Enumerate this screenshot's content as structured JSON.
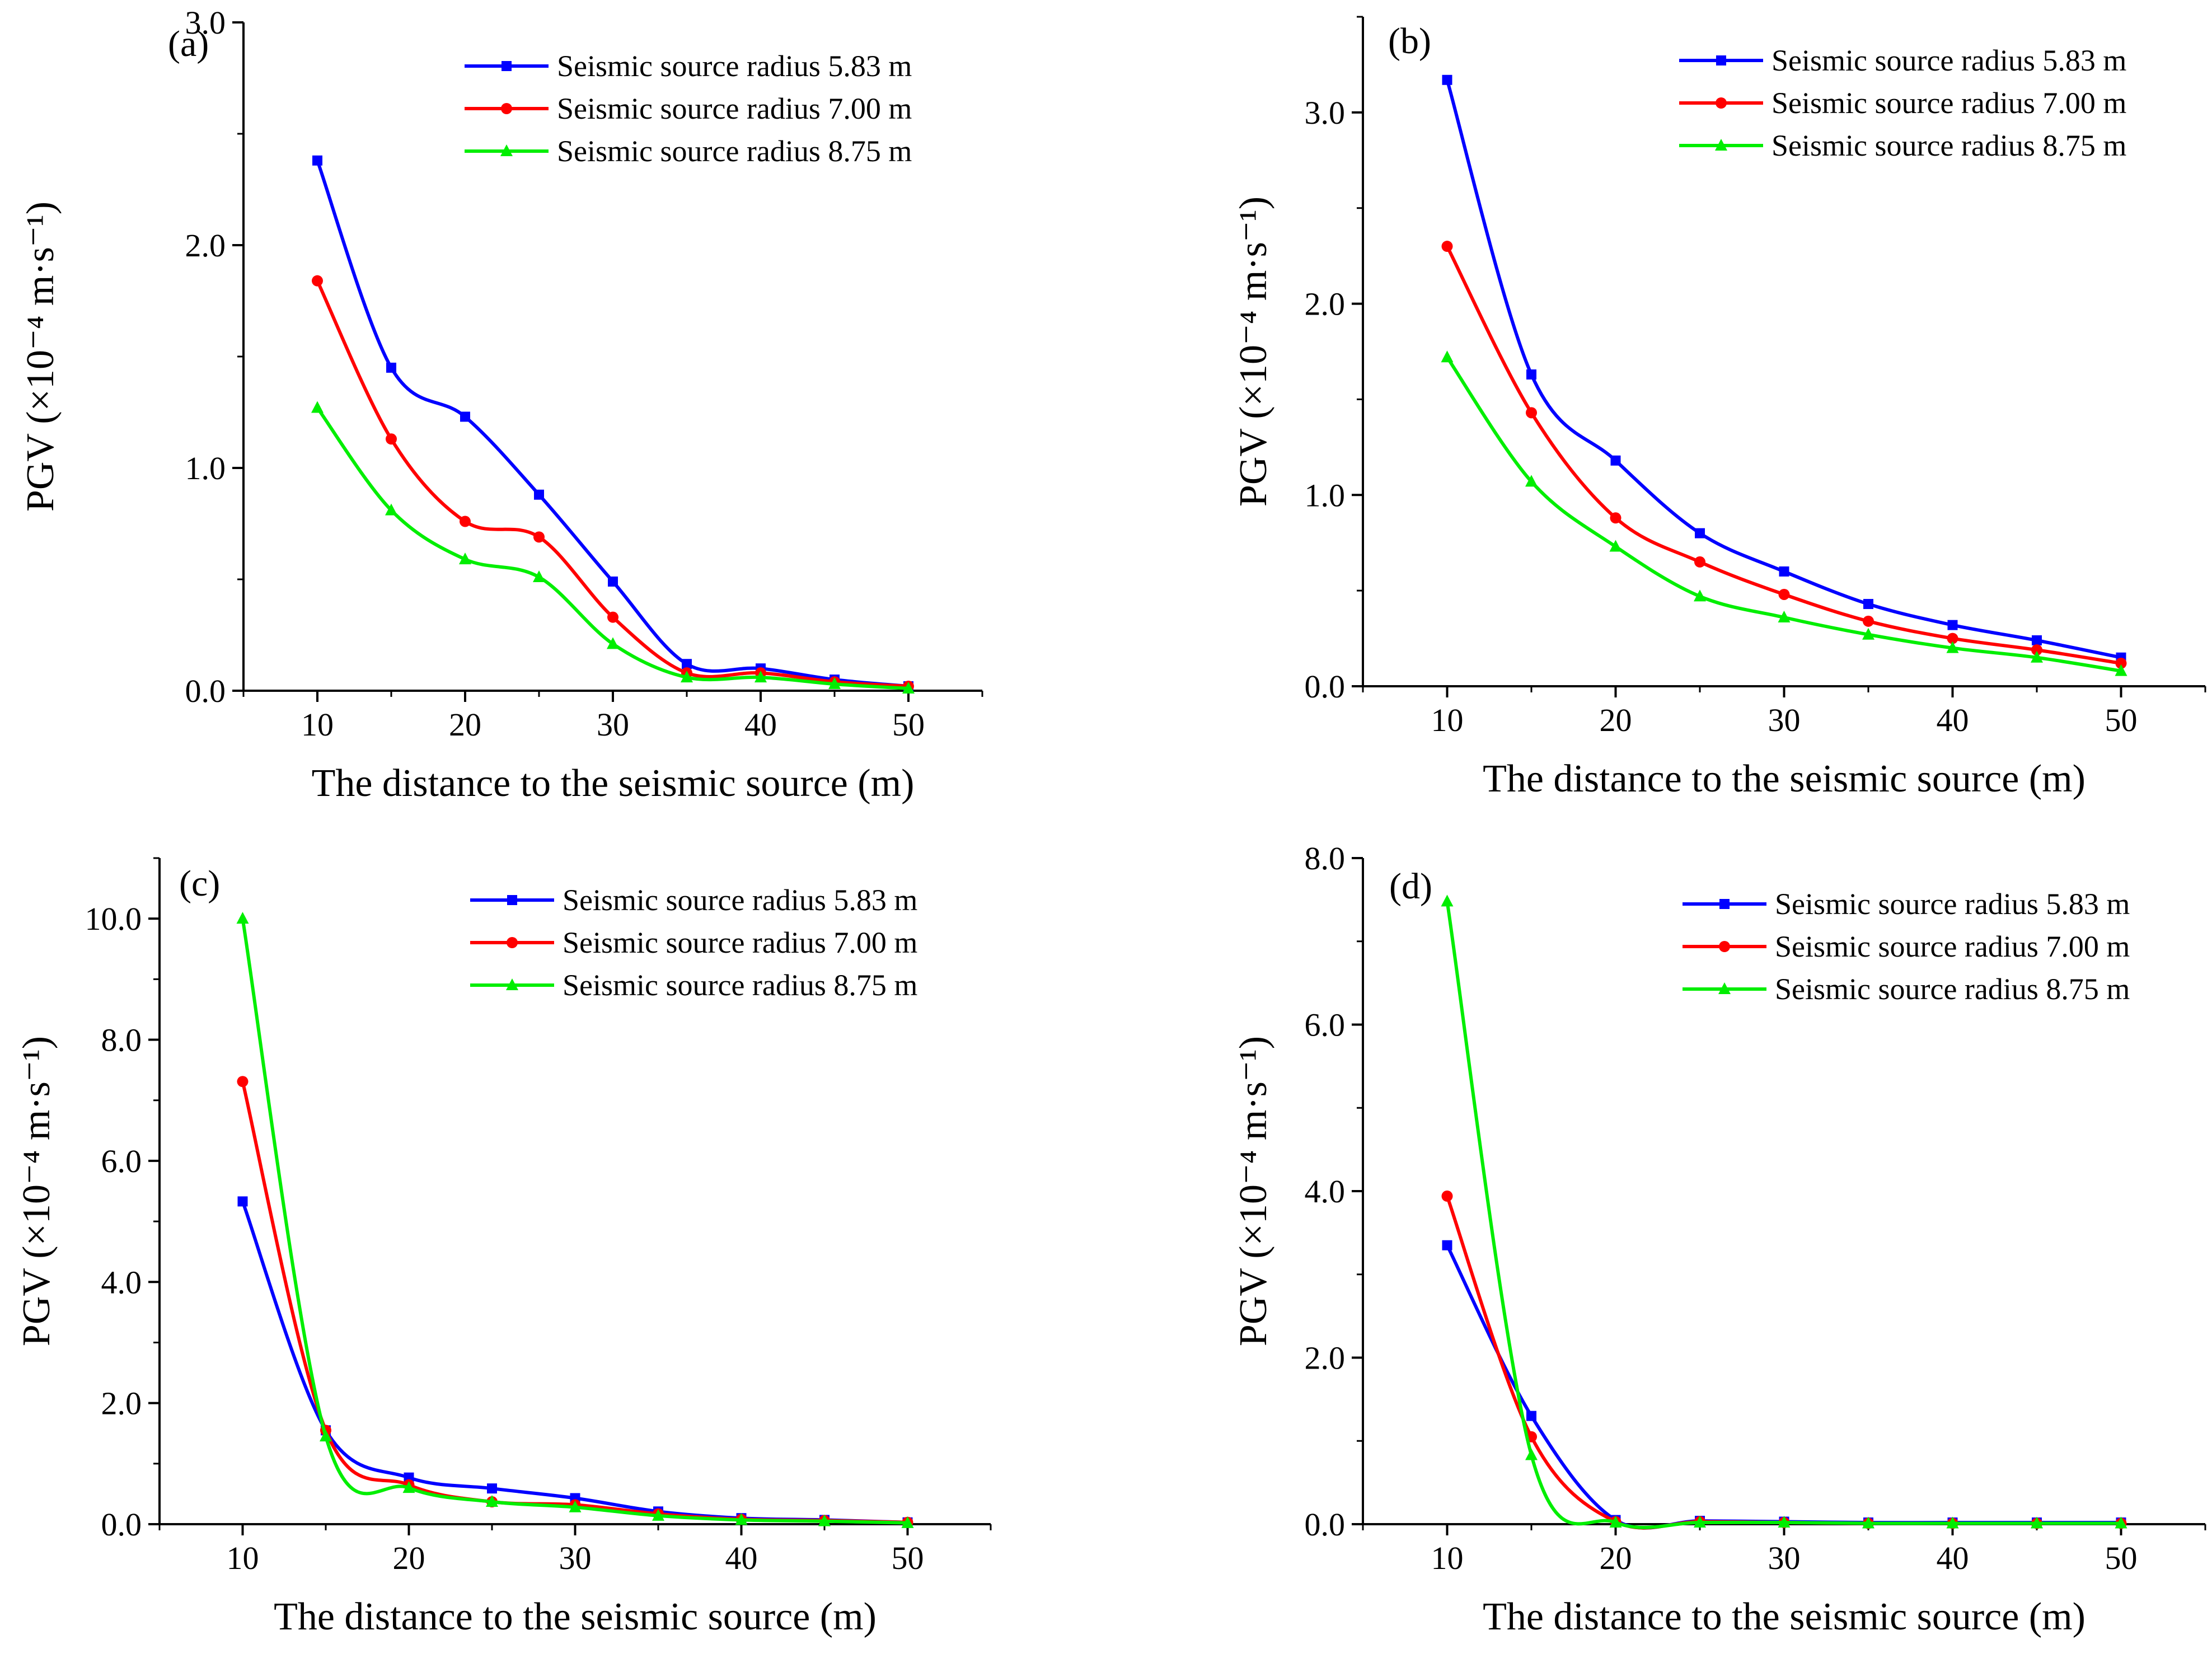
{
  "colors": {
    "series_blue": "#0000ff",
    "series_red": "#ff0000",
    "series_green": "#00ee00",
    "axis": "#000000"
  },
  "chart_data": [
    {
      "type": "line",
      "panel": "(a)",
      "xlabel": "The distance to the seismic source (m)",
      "ylabel": "PGV (×10⁻⁴ m·s⁻¹)",
      "xlim": [
        5,
        55
      ],
      "ylim": [
        0,
        3.0
      ],
      "xticks": [
        10,
        20,
        30,
        40,
        50
      ],
      "yticks": [
        "0.0",
        "1.0",
        "2.0",
        "3.0"
      ],
      "x": [
        10,
        15,
        20,
        25,
        30,
        35,
        40,
        45,
        50
      ],
      "series": [
        {
          "name": "Seismic source radius 5.83 m",
          "color": "#0000ff",
          "marker": "square",
          "values": [
            2.38,
            1.45,
            1.23,
            0.88,
            0.49,
            0.12,
            0.1,
            0.05,
            0.02
          ]
        },
        {
          "name": "Seismic source radius 7.00 m",
          "color": "#ff0000",
          "marker": "circle",
          "values": [
            1.84,
            1.13,
            0.76,
            0.69,
            0.33,
            0.08,
            0.08,
            0.04,
            0.02
          ]
        },
        {
          "name": "Seismic source radius 8.75 m",
          "color": "#00ee00",
          "marker": "triangle",
          "values": [
            1.27,
            0.81,
            0.59,
            0.51,
            0.21,
            0.06,
            0.06,
            0.03,
            0.01
          ]
        }
      ]
    },
    {
      "type": "line",
      "panel": "(b)",
      "xlabel": "The distance to the seismic source (m)",
      "ylabel": "PGV (×10⁻⁴ m·s⁻¹)",
      "xlim": [
        5,
        55
      ],
      "ylim": [
        0,
        3.5
      ],
      "xticks": [
        10,
        20,
        30,
        40,
        50
      ],
      "yticks": [
        "0.0",
        "1.0",
        "2.0",
        "3.0"
      ],
      "x": [
        10,
        15,
        20,
        25,
        30,
        35,
        40,
        45,
        50
      ],
      "series": [
        {
          "name": "Seismic source radius 5.83 m",
          "color": "#0000ff",
          "marker": "square",
          "values": [
            3.17,
            1.63,
            1.18,
            0.8,
            0.6,
            0.43,
            0.32,
            0.24,
            0.15
          ]
        },
        {
          "name": "Seismic source radius 7.00 m",
          "color": "#ff0000",
          "marker": "circle",
          "values": [
            2.3,
            1.43,
            0.88,
            0.65,
            0.48,
            0.34,
            0.25,
            0.19,
            0.12
          ]
        },
        {
          "name": "Seismic source radius 8.75 m",
          "color": "#00ee00",
          "marker": "triangle",
          "values": [
            1.72,
            1.07,
            0.73,
            0.47,
            0.36,
            0.27,
            0.2,
            0.15,
            0.08
          ]
        }
      ]
    },
    {
      "type": "line",
      "panel": "(c)",
      "xlabel": "The distance to the seismic source (m)",
      "ylabel": "PGV (×10⁻⁴ m·s⁻¹)",
      "xlim": [
        5,
        55
      ],
      "ylim": [
        0,
        11.0
      ],
      "xticks": [
        10,
        20,
        30,
        40,
        50
      ],
      "yticks": [
        "0.0",
        "2.0",
        "4.0",
        "6.0",
        "8.0",
        "10.0"
      ],
      "x": [
        10,
        15,
        20,
        25,
        30,
        35,
        40,
        45,
        50
      ],
      "series": [
        {
          "name": "Seismic source radius 5.83 m",
          "color": "#0000ff",
          "marker": "square",
          "values": [
            5.33,
            1.55,
            0.77,
            0.59,
            0.43,
            0.21,
            0.1,
            0.07,
            0.03
          ]
        },
        {
          "name": "Seismic source radius 7.00 m",
          "color": "#ff0000",
          "marker": "circle",
          "values": [
            7.31,
            1.55,
            0.65,
            0.37,
            0.32,
            0.17,
            0.08,
            0.06,
            0.03
          ]
        },
        {
          "name": "Seismic source radius 8.75 m",
          "color": "#00ee00",
          "marker": "triangle",
          "values": [
            10.0,
            1.45,
            0.6,
            0.37,
            0.28,
            0.14,
            0.07,
            0.05,
            0.02
          ]
        }
      ]
    },
    {
      "type": "line",
      "panel": "(d)",
      "xlabel": "The distance to the seismic source (m)",
      "ylabel": "PGV (×10⁻⁴ m·s⁻¹)",
      "xlim": [
        5,
        55
      ],
      "ylim": [
        0,
        8.0
      ],
      "xticks": [
        10,
        20,
        30,
        40,
        50
      ],
      "yticks": [
        "0.0",
        "2.0",
        "4.0",
        "6.0",
        "8.0"
      ],
      "x": [
        10,
        15,
        20,
        25,
        30,
        35,
        40,
        45,
        50
      ],
      "series": [
        {
          "name": "Seismic source radius 5.83 m",
          "color": "#0000ff",
          "marker": "square",
          "values": [
            3.35,
            1.3,
            0.05,
            0.04,
            0.03,
            0.02,
            0.02,
            0.02,
            0.02
          ]
        },
        {
          "name": "Seismic source radius 7.00 m",
          "color": "#ff0000",
          "marker": "circle",
          "values": [
            3.94,
            1.05,
            0.03,
            0.03,
            0.02,
            0.01,
            0.01,
            0.01,
            0.01
          ]
        },
        {
          "name": "Seismic source radius 8.75 m",
          "color": "#00ee00",
          "marker": "triangle",
          "values": [
            7.48,
            0.83,
            0.02,
            0.02,
            0.02,
            0.01,
            0.01,
            0.01,
            0.01
          ]
        }
      ]
    }
  ]
}
